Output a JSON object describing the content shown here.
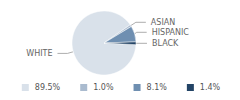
{
  "chart_data": {
    "type": "pie",
    "categories": [
      "WHITE",
      "ASIAN",
      "HISPANIC",
      "BLACK"
    ],
    "values": [
      89.5,
      1.0,
      8.1,
      1.4
    ],
    "value_labels": [
      "89.5%",
      "1.0%",
      "8.1%",
      "1.4%"
    ],
    "colors": [
      "#d9e1ea",
      "#aabbcf",
      "#6f8fb1",
      "#234466"
    ],
    "legend": "bottom"
  }
}
